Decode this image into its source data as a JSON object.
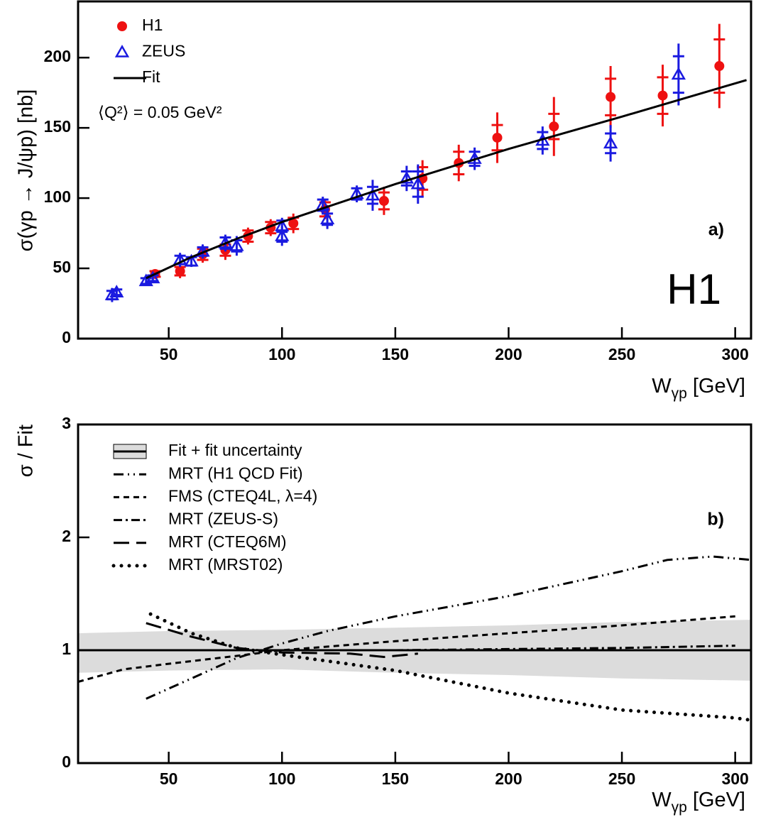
{
  "chart_data": [
    {
      "type": "scatter",
      "title": "a)",
      "watermark": "H1",
      "annotation": "⟨Q²⟩ = 0.05 GeV²",
      "y_label": "σ(γp → J/ψp) [nb]",
      "x_label": "W",
      "x_label_sub": "γp",
      "x_label_unit": "[GeV]",
      "xlim": [
        10,
        307
      ],
      "ylim": [
        0,
        240
      ],
      "xticks": [
        50,
        100,
        150,
        200,
        250,
        300
      ],
      "yticks": [
        0,
        50,
        100,
        150,
        200
      ],
      "legend": "top-left",
      "series": [
        {
          "name": "H1",
          "color": "#ee1111",
          "marker": "circle",
          "x": [
            44,
            55,
            65,
            75,
            85,
            95,
            105,
            119,
            145,
            162,
            178,
            195,
            220,
            245,
            268,
            293
          ],
          "values": [
            46,
            48,
            60,
            63,
            73,
            79,
            82,
            92,
            98,
            114,
            125,
            143,
            151,
            172,
            173,
            194
          ],
          "stat_errors": [
            2,
            3,
            4,
            4,
            4,
            4,
            4,
            5,
            6,
            8,
            8,
            9,
            9,
            13,
            13,
            19
          ],
          "errors": [
            3,
            5,
            6,
            7,
            6,
            6,
            7,
            7,
            10,
            13,
            13,
            18,
            21,
            22,
            22,
            30
          ]
        },
        {
          "name": "ZEUS",
          "color": "#1a1ae0",
          "marker": "triangle",
          "x": [
            25,
            27,
            40,
            43,
            55,
            60,
            65,
            75,
            80,
            100,
            100,
            118,
            120,
            133,
            140,
            155,
            160,
            185,
            215,
            245,
            275
          ],
          "values": [
            31,
            33,
            41,
            43,
            56,
            55,
            62,
            68,
            66,
            80,
            73,
            95,
            85,
            103,
            102,
            114,
            110,
            128,
            141,
            139,
            188
          ],
          "stat_errors": [
            3,
            2,
            2,
            2,
            3,
            3,
            3,
            4,
            4,
            4,
            4,
            4,
            4,
            4,
            6,
            5,
            9,
            5,
            6,
            7,
            13
          ],
          "errors": [
            5,
            3,
            3,
            3,
            5,
            4,
            5,
            6,
            7,
            6,
            7,
            6,
            7,
            6,
            11,
            9,
            14,
            8,
            10,
            13,
            22
          ]
        },
        {
          "name": "Fit",
          "color": "#000000",
          "marker": "line",
          "x": [
            40,
            60,
            80,
            100,
            150,
            200,
            250,
            305
          ],
          "values": [
            43,
            58,
            71,
            83,
            110,
            135,
            158,
            184
          ]
        }
      ]
    },
    {
      "type": "line",
      "title": "b)",
      "y_label": "σ / Fit",
      "x_label": "W",
      "x_label_sub": "γp",
      "x_label_unit": "[GeV]",
      "xlim": [
        10,
        307
      ],
      "ylim": [
        0,
        3
      ],
      "xticks": [
        50,
        100,
        150,
        200,
        250,
        300
      ],
      "yticks": [
        0,
        1,
        2,
        3
      ],
      "legend": "top-left",
      "series": [
        {
          "name": "Fit + fit uncertainty",
          "color": "#000000",
          "dash": "solid",
          "band_color": "#dcdcdc",
          "x": [
            10,
            50,
            100,
            150,
            200,
            250,
            307
          ],
          "values": [
            1,
            1,
            1,
            1,
            1,
            1,
            1
          ],
          "band_upper": [
            1.15,
            1.17,
            1.18,
            1.2,
            1.22,
            1.25,
            1.27
          ],
          "band_lower": [
            0.8,
            0.82,
            0.83,
            0.8,
            0.78,
            0.75,
            0.73
          ]
        },
        {
          "name": "MRT (H1 QCD Fit)",
          "color": "#000000",
          "dash": "dashdotdot",
          "x": [
            40,
            60,
            80,
            100,
            120,
            150,
            200,
            250,
            270,
            290,
            307
          ],
          "values": [
            0.57,
            0.75,
            0.93,
            1.06,
            1.17,
            1.3,
            1.48,
            1.7,
            1.8,
            1.83,
            1.8
          ]
        },
        {
          "name": "FMS (CTEQ4L, λ=4)",
          "color": "#000000",
          "dash": "dash",
          "x": [
            10,
            30,
            50,
            80,
            100,
            150,
            200,
            250,
            300
          ],
          "values": [
            0.72,
            0.83,
            0.88,
            0.95,
            1.0,
            1.08,
            1.15,
            1.22,
            1.3
          ]
        },
        {
          "name": "MRT (ZEUS-S)",
          "color": "#000000",
          "dash": "dashdot",
          "x": [
            40,
            100,
            150,
            200,
            250,
            300
          ],
          "values": [
            1.0,
            1.0,
            1.0,
            1.01,
            1.02,
            1.04
          ]
        },
        {
          "name": "MRT (CTEQ6M)",
          "color": "#000000",
          "dash": "longdash",
          "x": [
            40,
            60,
            80,
            100,
            130,
            145,
            160
          ],
          "values": [
            1.24,
            1.12,
            1.02,
            0.98,
            0.97,
            0.94,
            0.97
          ]
        },
        {
          "name": "MRT (MRST02)",
          "color": "#000000",
          "dash": "dot",
          "x": [
            42,
            60,
            80,
            100,
            150,
            200,
            250,
            300,
            307
          ],
          "values": [
            1.32,
            1.15,
            1.02,
            0.96,
            0.82,
            0.62,
            0.47,
            0.4,
            0.38
          ]
        }
      ]
    }
  ]
}
